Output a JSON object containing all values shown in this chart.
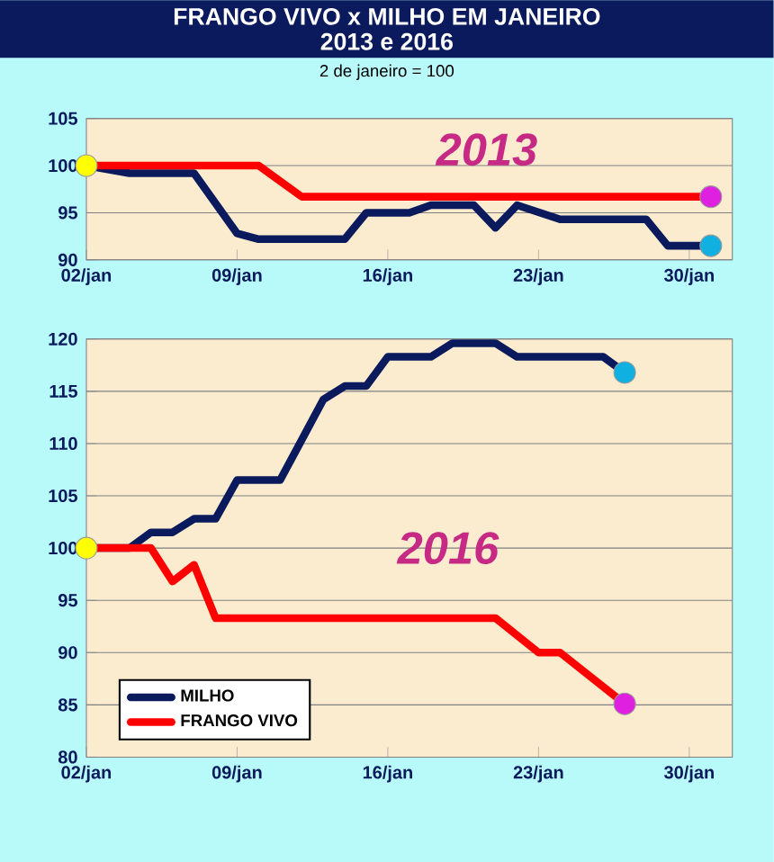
{
  "chart_data": [
    {
      "type": "line",
      "title": "FRANGO VIVO x MILHO EM JANEIRO",
      "subtitle": "2013 e 2016",
      "annotations": [
        "2 de janeiro = 100",
        "2013"
      ],
      "xlim": [
        "--01-02",
        "--02-01"
      ],
      "xticks": [
        {
          "value": "--01-02",
          "label": "02/jan"
        },
        {
          "value": "--01-09",
          "label": "09/jan"
        },
        {
          "value": "--01-16",
          "label": "16/jan"
        },
        {
          "value": "--01-23",
          "label": "23/jan"
        },
        {
          "value": "--01-30",
          "label": "30/jan"
        }
      ],
      "ylim": [
        90,
        105
      ],
      "yticks": [
        90,
        95,
        100,
        105
      ],
      "grid": "y",
      "series": [
        {
          "color": "#0a1a5c",
          "x": [
            "--01-02",
            "--01-04",
            "--01-07",
            "--01-09",
            "--01-10",
            "--01-14",
            "--01-15",
            "--01-17",
            "--01-18",
            "--01-20",
            "--01-21",
            "--01-22",
            "--01-24",
            "--01-28",
            "--01-29",
            "--01-31"
          ],
          "values": [
            100,
            99.2,
            99.2,
            92.8,
            92.2,
            92.2,
            95,
            95,
            95.8,
            95.8,
            93.4,
            95.8,
            94.3,
            94.3,
            91.5,
            91.5
          ]
        },
        {
          "color": "#ff0000",
          "x": [
            "--01-02",
            "--01-10",
            "--01-12",
            "--01-31"
          ],
          "values": [
            100,
            100,
            96.7,
            96.7
          ]
        },
        {
          "type": "scatter",
          "color": "#ffff00",
          "x": [
            "--01-02"
          ],
          "values": [
            100
          ]
        },
        {
          "type": "scatter",
          "color": "#e020e0",
          "x": [
            "--01-31"
          ],
          "values": [
            96.7
          ]
        },
        {
          "type": "scatter",
          "color": "#10b0e0",
          "x": [
            "--01-31"
          ],
          "values": [
            91.5
          ]
        }
      ]
    },
    {
      "type": "line",
      "annotations": [
        "2016"
      ],
      "legend": "bottom left",
      "xlim": [
        "--01-02",
        "--02-01"
      ],
      "xticks": [
        {
          "value": "--01-02",
          "label": "02/jan"
        },
        {
          "value": "--01-09",
          "label": "09/jan"
        },
        {
          "value": "--01-16",
          "label": "16/jan"
        },
        {
          "value": "--01-23",
          "label": "23/jan"
        },
        {
          "value": "--01-30",
          "label": "30/jan"
        }
      ],
      "ylim": [
        80,
        120
      ],
      "yticks": [
        80,
        85,
        90,
        95,
        100,
        105,
        110,
        115,
        120
      ],
      "grid": "y",
      "series": [
        {
          "name": "MILHO",
          "color": "#0a1a5c",
          "x": [
            "--01-02",
            "--01-04",
            "--01-05",
            "--01-06",
            "--01-07",
            "--01-08",
            "--01-09",
            "--01-11",
            "--01-13",
            "--01-14",
            "--01-15",
            "--01-16",
            "--01-18",
            "--01-19",
            "--01-21",
            "--01-22",
            "--01-26",
            "--01-27"
          ],
          "values": [
            100,
            100,
            101.5,
            101.5,
            102.8,
            102.8,
            106.5,
            106.5,
            114.2,
            115.5,
            115.5,
            118.3,
            118.3,
            119.6,
            119.6,
            118.3,
            118.3,
            116.8
          ]
        },
        {
          "name": "FRANGO VIVO",
          "color": "#ff0000",
          "x": [
            "--01-02",
            "--01-05",
            "--01-06",
            "--01-07",
            "--01-08",
            "--01-21",
            "--01-23",
            "--01-24",
            "--01-27"
          ],
          "values": [
            100,
            100,
            96.8,
            98.4,
            93.3,
            93.3,
            90,
            90,
            85.1
          ]
        },
        {
          "type": "scatter",
          "color": "#ffff00",
          "x": [
            "--01-02"
          ],
          "values": [
            100
          ]
        },
        {
          "type": "scatter",
          "color": "#10b0e0",
          "x": [
            "--01-27"
          ],
          "values": [
            116.8
          ]
        },
        {
          "type": "scatter",
          "color": "#e020e0",
          "x": [
            "--01-27"
          ],
          "values": [
            85.1
          ]
        }
      ]
    }
  ]
}
